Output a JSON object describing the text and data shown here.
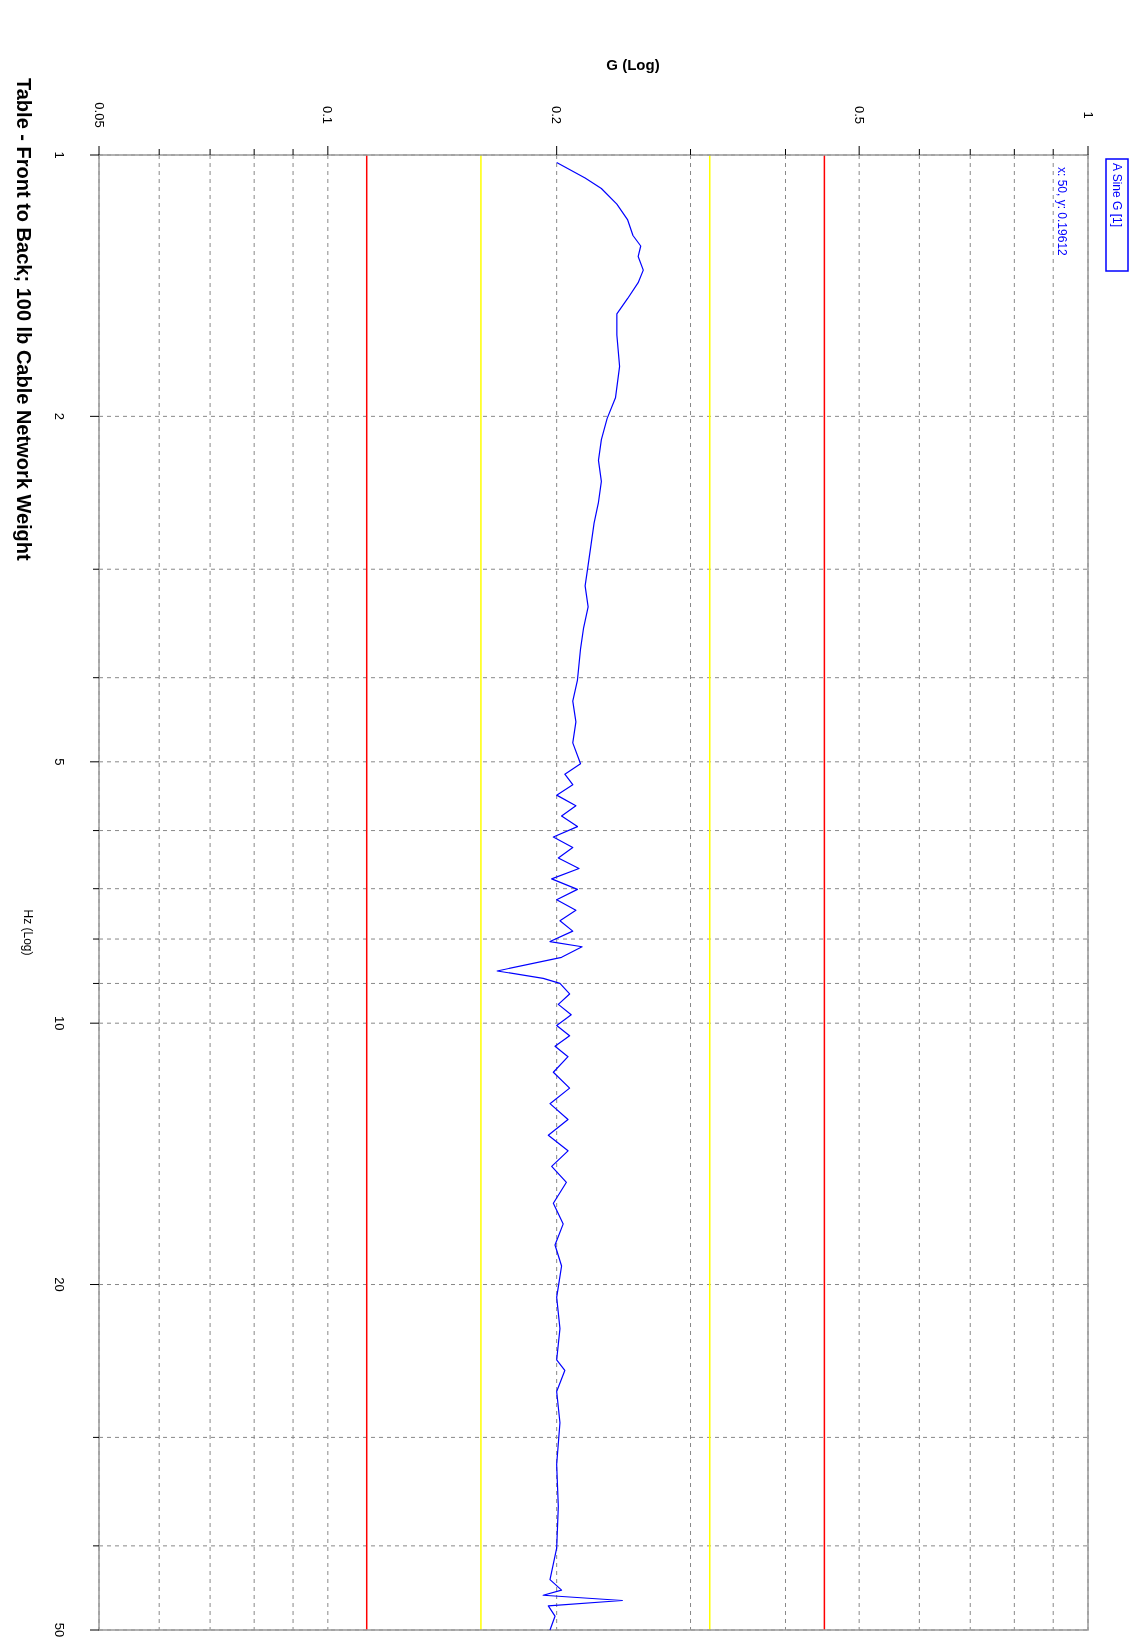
{
  "chart_data": {
    "type": "line",
    "title": "Table - Front to Back; 100 lb Cable Network Weight",
    "xlabel": "G (Log)",
    "ylabel": "Hz (Log)",
    "log": "xy",
    "grid": true,
    "legend": "top right",
    "line_style": "solid",
    "xlim": [
      0.05,
      1
    ],
    "ylim": [
      50,
      1
    ],
    "xticks": [
      0.05,
      {
        "value": 0.06,
        "label": null
      },
      {
        "value": 0.07,
        "label": null
      },
      {
        "value": 0.08,
        "label": null
      },
      {
        "value": 0.09,
        "label": null
      },
      0.1,
      0.2,
      {
        "value": 0.3,
        "label": null
      },
      {
        "value": 0.4,
        "label": null
      },
      0.5,
      {
        "value": 0.6,
        "label": null
      },
      {
        "value": 0.7,
        "label": null
      },
      {
        "value": 0.8,
        "label": null
      },
      {
        "value": 0.9,
        "label": null
      },
      1
    ],
    "yticks": [
      1,
      2,
      {
        "value": 3,
        "label": null
      },
      {
        "value": 4,
        "label": null
      },
      5,
      {
        "value": 6,
        "label": null
      },
      {
        "value": 7,
        "label": null
      },
      {
        "value": 8,
        "label": null
      },
      {
        "value": 9,
        "label": null
      },
      10,
      20,
      {
        "value": 30,
        "label": null
      },
      {
        "value": 40,
        "label": null
      },
      50
    ],
    "ref_lines": [
      {
        "axis": "x",
        "value": 0.1125,
        "color": "#ff0000"
      },
      {
        "axis": "x",
        "value": 0.159,
        "color": "#ffff00"
      },
      {
        "axis": "x",
        "value": 0.318,
        "color": "#ffff00"
      },
      {
        "axis": "x",
        "value": 0.45,
        "color": "#ff0000"
      }
    ],
    "annotations": [
      "x: 50, y: 0.19612"
    ],
    "series": [
      {
        "name": "A Sine G [1]",
        "color": "#0000ff",
        "x": [
          0.2,
          0.218,
          0.229,
          0.24,
          0.248,
          0.252,
          0.258,
          0.256,
          0.26,
          0.256,
          0.248,
          0.24,
          0.24,
          0.242,
          0.239,
          0.233,
          0.229,
          0.227,
          0.229,
          0.227,
          0.224,
          0.222,
          0.22,
          0.218,
          0.22,
          0.217,
          0.215,
          0.213,
          0.21,
          0.212,
          0.21,
          0.215,
          0.205,
          0.21,
          0.2,
          0.212,
          0.203,
          0.213,
          0.198,
          0.21,
          0.201,
          0.214,
          0.197,
          0.213,
          0.2,
          0.212,
          0.202,
          0.21,
          0.196,
          0.216,
          0.203,
          0.167,
          0.192,
          0.202,
          0.208,
          0.201,
          0.209,
          0.2,
          0.208,
          0.199,
          0.207,
          0.198,
          0.208,
          0.196,
          0.207,
          0.195,
          0.207,
          0.197,
          0.206,
          0.198,
          0.204,
          0.199,
          0.203,
          0.2,
          0.202,
          0.2,
          0.205,
          0.2,
          0.202,
          0.2,
          0.201,
          0.2,
          0.196,
          0.203,
          0.192,
          0.244,
          0.195,
          0.199,
          0.196
        ],
        "values": [
          1.02,
          1.063,
          1.093,
          1.139,
          1.188,
          1.238,
          1.273,
          1.309,
          1.357,
          1.403,
          1.463,
          1.524,
          1.612,
          1.752,
          1.904,
          2.012,
          2.127,
          2.248,
          2.376,
          2.512,
          2.655,
          2.807,
          2.967,
          3.136,
          3.315,
          3.504,
          3.705,
          4.025,
          4.256,
          4.498,
          4.755,
          5.026,
          5.167,
          5.313,
          5.462,
          5.617,
          5.774,
          5.937,
          6.104,
          6.276,
          6.452,
          6.634,
          6.821,
          7.013,
          7.21,
          7.413,
          7.621,
          7.834,
          8.054,
          8.166,
          8.397,
          8.707,
          8.878,
          9.0,
          9.254,
          9.513,
          9.781,
          10.06,
          10.34,
          10.63,
          10.93,
          11.39,
          11.88,
          12.38,
          12.91,
          13.46,
          14.03,
          14.62,
          15.25,
          16.12,
          17.03,
          18.01,
          19.04,
          20.69,
          22.48,
          24.43,
          25.12,
          26.56,
          28.86,
          32.24,
          36.04,
          40.25,
          43.75,
          44.98,
          45.6,
          46.24,
          46.9,
          48.2,
          50
        ]
      }
    ]
  }
}
